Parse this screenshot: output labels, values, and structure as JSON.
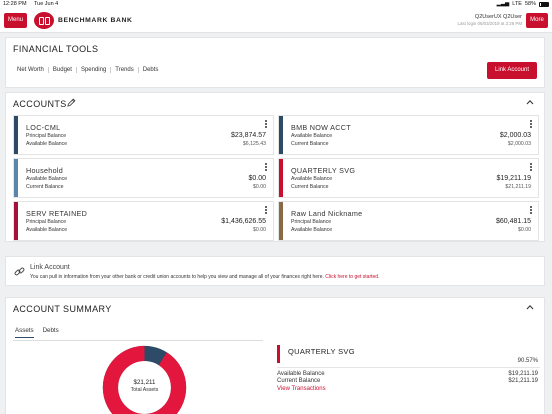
{
  "status_bar": {
    "time": "12:28 PM",
    "date": "Tue Jun 4",
    "network": "LTE",
    "battery": "58%"
  },
  "header": {
    "menu_label": "Menu",
    "more_label": "More",
    "brand": "BENCHMARK BANK",
    "user_name": "Q2UserUX Q2User",
    "last_login": "Last login 06/03/2019 at 2:26 PM"
  },
  "financial_tools": {
    "title": "FINANCIAL TOOLS",
    "nav": [
      "Net Worth",
      "Budget",
      "Spending",
      "Trends",
      "Debts"
    ],
    "link_account_label": "Link Account"
  },
  "accounts": {
    "title": "ACCOUNTS",
    "items": [
      {
        "name": "LOC-CML",
        "label1": "Principal Balance",
        "value1": "$23,874.57",
        "label2": "Available Balance",
        "value2": "$6,125.43",
        "color": "#2d4a66"
      },
      {
        "name": "BMB NOW ACCT",
        "label1": "Available Balance",
        "value1": "$2,000.03",
        "label2": "Current Balance",
        "value2": "$2,000.03",
        "color": "#2d4a66"
      },
      {
        "name": "Household",
        "label1": "Available Balance",
        "value1": "$0.00",
        "label2": "Current Balance",
        "value2": "$0.00",
        "color": "#5b86aa"
      },
      {
        "name": "QUARTERLY SVG",
        "label1": "Available Balance",
        "value1": "$19,211.19",
        "label2": "Current Balance",
        "value2": "$21,211.19",
        "color": "#c8102e"
      },
      {
        "name": "SERV RETAINED",
        "label1": "Principal Balance",
        "value1": "$1,436,626.55",
        "label2": "Available Balance",
        "value2": "$0.00",
        "color": "#a3123a"
      },
      {
        "name": "Raw Land Nickname",
        "label1": "Principal Balance",
        "value1": "$60,481.15",
        "label2": "Available Balance",
        "value2": "$0.00",
        "color": "#8a6a45"
      }
    ]
  },
  "link_account": {
    "title": "Link Account",
    "description": "You can pull in information from your other bank or credit union accounts to help you view and manage all of your finances right here. ",
    "cta": "Click here to get started."
  },
  "account_summary": {
    "title": "ACCOUNT SUMMARY",
    "tabs": [
      "Assets",
      "Debts"
    ],
    "total": "$21,211",
    "total_label": "Total Assets",
    "donut_pct_label": "91%",
    "donut_fraction_primary": 0.91,
    "primary_color": "#e3173e",
    "secondary_color": "#2d4a66",
    "detail": {
      "name": "QUARTERLY SVG",
      "percent": "90.57%",
      "label1": "Available Balance",
      "value1": "$19,211.19",
      "label2": "Current Balance",
      "value2": "$21,211.19",
      "view_transactions": "View Transactions"
    }
  }
}
